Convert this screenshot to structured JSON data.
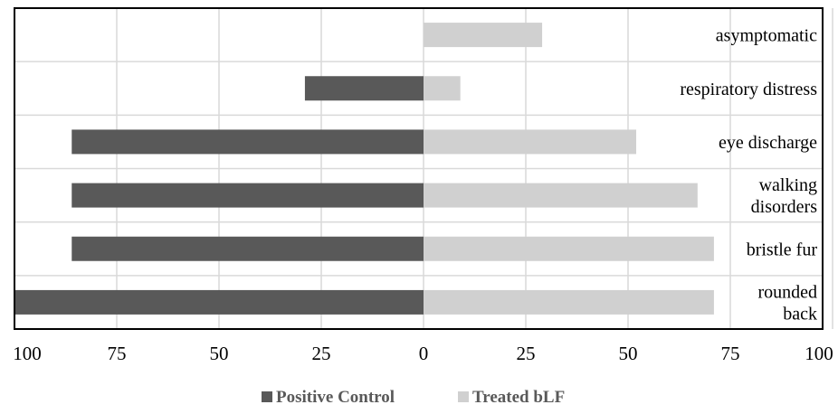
{
  "chart_data": {
    "type": "bar",
    "orientation": "horizontal-diverging",
    "categories": [
      [
        "asymptomatic"
      ],
      [
        "respiratory distress"
      ],
      [
        "eye discharge"
      ],
      [
        "walking",
        "disorders"
      ],
      [
        "bristle fur"
      ],
      [
        "rounded",
        "back"
      ]
    ],
    "series": [
      {
        "name": "Positive Control",
        "side": "left",
        "color": "#595959",
        "values": [
          0,
          29,
          86,
          86,
          86,
          100
        ]
      },
      {
        "name": "Treated bLF",
        "side": "right",
        "color": "#d0d0d0",
        "values": [
          29,
          9,
          52,
          67,
          71,
          71
        ]
      }
    ],
    "x_ticks": [
      "100",
      "75",
      "50",
      "25",
      "0",
      "25",
      "50",
      "75",
      "100"
    ],
    "xlim": [
      -100,
      100
    ],
    "xlabel": "",
    "ylabel": "",
    "title": "",
    "grid": "vertical",
    "legend": "bottom"
  }
}
